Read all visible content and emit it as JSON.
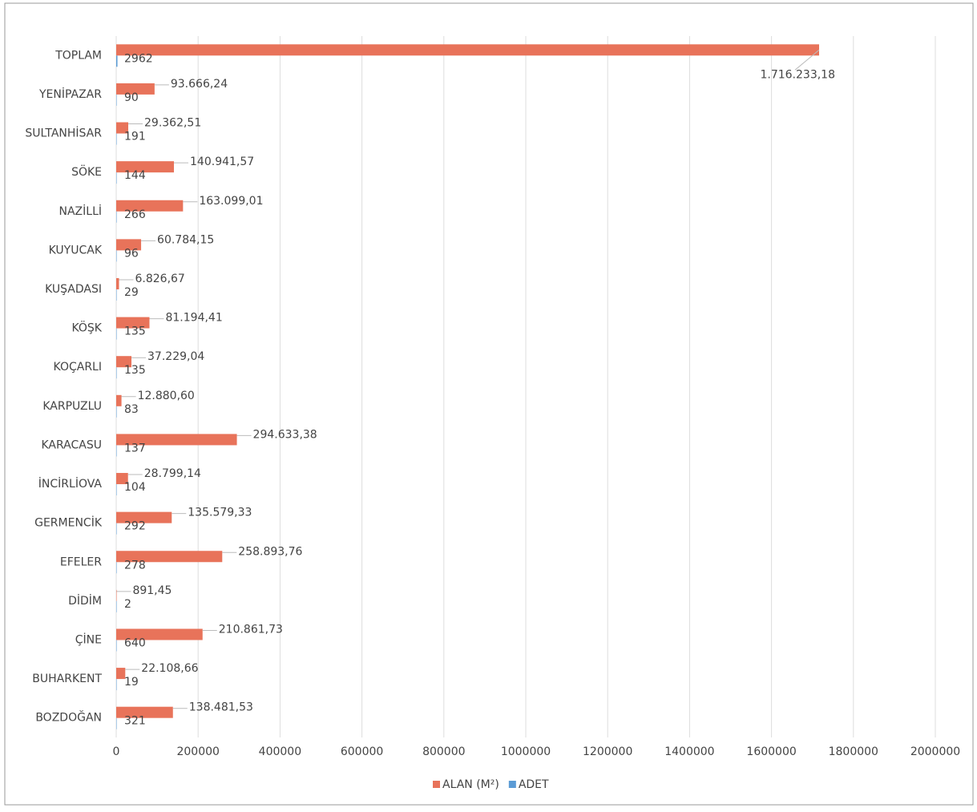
{
  "chart_data": {
    "type": "hbar",
    "categories": [
      "TOPLAM",
      "YENİPAZAR",
      "SULTANHİSAR",
      "SÖKE",
      "NAZİLLİ",
      "KUYUCAK",
      "KUŞADASI",
      "KÖŞK",
      "KOÇARLI",
      "KARPUZLU",
      "KARACASU",
      "İNCİRLİOVA",
      "GERMENCİK",
      "EFELER",
      "DİDİM",
      "ÇİNE",
      "BUHARKENT",
      "BOZDOĞAN"
    ],
    "series": [
      {
        "name": "ALAN (M²)",
        "color": "#e8735a",
        "values": [
          1716233.18,
          93666.24,
          29362.51,
          140941.57,
          163099.01,
          60784.15,
          6826.67,
          81194.41,
          37229.04,
          12880.6,
          294633.38,
          28799.14,
          135579.33,
          258893.76,
          891.45,
          210861.73,
          22108.66,
          138481.53
        ],
        "value_labels": [
          "1.716.233,18",
          "93.666,24",
          "29.362,51",
          "140.941,57",
          "163.099,01",
          "60.784,15",
          "6.826,67",
          "81.194,41",
          "37.229,04",
          "12.880,60",
          "294.633,38",
          "28.799,14",
          "135.579,33",
          "258.893,76",
          "891,45",
          "210.861,73",
          "22.108,66",
          "138.481,53"
        ]
      },
      {
        "name": "ADET",
        "color": "#5b9bd5",
        "values": [
          2962,
          90,
          191,
          144,
          266,
          96,
          29,
          135,
          135,
          83,
          137,
          104,
          292,
          278,
          2,
          640,
          19,
          321
        ]
      }
    ],
    "xlim": [
      0,
      2000000
    ],
    "xticks": [
      0,
      200000,
      400000,
      600000,
      800000,
      1000000,
      1200000,
      1400000,
      1600000,
      1800000,
      2000000
    ],
    "grid": true,
    "legend": "bottom"
  }
}
